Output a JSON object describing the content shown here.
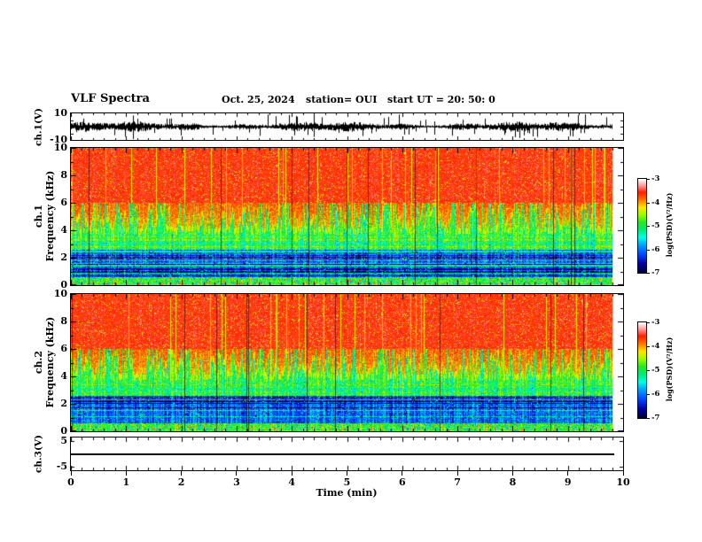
{
  "title": {
    "main": "VLF Spectra",
    "date": "Oct. 25, 2024",
    "station": "station= OUI",
    "start_ut": "start UT =  20: 50: 0"
  },
  "axes": {
    "time": {
      "label": "Time (min)",
      "ticks": [
        0,
        1,
        2,
        3,
        4,
        5,
        6,
        7,
        8,
        9,
        10
      ],
      "minor_step_min": 0.2,
      "range_min": [
        0,
        10
      ]
    },
    "ch1_wave": {
      "label": "ch.1(V)",
      "ticks": [
        10,
        -10
      ],
      "range_v": [
        -10,
        10
      ]
    },
    "ch1_spec": {
      "label_line1": "ch.1",
      "label_line2": "Frequency (kHz)",
      "ticks": [
        10,
        8,
        6,
        4,
        2,
        0
      ],
      "range_khz": [
        0,
        10
      ]
    },
    "ch2_spec": {
      "label_line1": "ch.2",
      "label_line2": "Frequency (kHz)",
      "ticks": [
        10,
        8,
        6,
        4,
        2,
        0
      ],
      "range_khz": [
        0,
        10
      ]
    },
    "ch3_wave": {
      "label": "ch.3(V)",
      "ticks": [
        5,
        -5
      ],
      "range_v": [
        -5,
        5
      ]
    }
  },
  "colorbar": {
    "label": "log(PSD)(V²/Hz)",
    "ticks": [
      -3,
      -4,
      -5,
      -6,
      -7
    ],
    "range": [
      -7,
      -3
    ],
    "colors_top_to_bottom": [
      "#ffffff",
      "#ff9696",
      "#ff1e00",
      "#ff7800",
      "#ffe600",
      "#96ff00",
      "#28e628",
      "#00ebc8",
      "#00a0ff",
      "#0046ff",
      "#0000a0",
      "#000030"
    ]
  },
  "chart_data": [
    {
      "type": "line",
      "panel": "ch1_waveform",
      "ylabel": "ch.1(V)",
      "xlabel": "Time (min)",
      "xlim": [
        0,
        10
      ],
      "ylim": [
        -10,
        10
      ],
      "data_end_min": 9.8,
      "description": "Dense broadband audio noise waveform: continuous black band of ~±2-4 V with frequent impulsive spikes reaching toward ±10 V, uniform across the full record."
    },
    {
      "type": "heatmap",
      "panel": "ch1_spectrogram",
      "ylabel": "ch.1 Frequency (kHz)",
      "xlabel": "Time (min)",
      "xlim": [
        0,
        10
      ],
      "ylim": [
        0,
        10
      ],
      "data_end_min": 9.8,
      "z": {
        "label": "log(PSD)(V²/Hz)",
        "lim": [
          -7,
          -3
        ]
      },
      "bands": [
        {
          "freq_khz": [
            6,
            10
          ],
          "level_logpsd": -3.6,
          "appearance": "saturated red with sparse yellow vertical streaks"
        },
        {
          "freq_khz": [
            4,
            6
          ],
          "level_logpsd": -4.2,
          "appearance": "jagged yellow/green flame tops of sferics reaching up into the red zone"
        },
        {
          "freq_khz": [
            2.5,
            4
          ],
          "level_logpsd": -5.0,
          "appearance": "green and cyan mottled noise"
        },
        {
          "freq_khz": [
            0.6,
            2.5
          ],
          "level_logpsd": -6.2,
          "appearance": "blue/navy floor with horizontal cyan banding lines"
        },
        {
          "freq_khz": [
            0,
            0.6
          ],
          "level_logpsd": -4.9,
          "appearance": "green strip with red/yellow speckle at very bottom"
        }
      ],
      "features": "occasional thin dark-red vertical lines spanning all frequencies"
    },
    {
      "type": "heatmap",
      "panel": "ch2_spectrogram",
      "ylabel": "ch.2 Frequency (kHz)",
      "xlabel": "Time (min)",
      "xlim": [
        0,
        10
      ],
      "ylim": [
        0,
        10
      ],
      "data_end_min": 9.8,
      "z": {
        "label": "log(PSD)(V²/Hz)",
        "lim": [
          -7,
          -3
        ]
      },
      "bands": [
        {
          "freq_khz": [
            6,
            10
          ],
          "level_logpsd": -3.6,
          "appearance": "saturated red with sparse yellow vertical streaks"
        },
        {
          "freq_khz": [
            4,
            6
          ],
          "level_logpsd": -4.2,
          "appearance": "jagged yellow/green flame tops of sferics reaching up into the red zone"
        },
        {
          "freq_khz": [
            2.5,
            4
          ],
          "level_logpsd": -5.0,
          "appearance": "green and cyan mottled noise"
        },
        {
          "freq_khz": [
            0.6,
            2.5
          ],
          "level_logpsd": -6.2,
          "appearance": "blue/navy floor with horizontal cyan banding lines"
        },
        {
          "freq_khz": [
            0,
            0.6
          ],
          "level_logpsd": -4.9,
          "appearance": "green strip with red/yellow speckle at very bottom"
        }
      ],
      "features": "occasional thin dark-red vertical lines spanning all frequencies"
    },
    {
      "type": "line",
      "panel": "ch3_waveform",
      "ylabel": "ch.3(V)",
      "xlabel": "Time (min)",
      "xlim": [
        0,
        10
      ],
      "ylim": [
        -5,
        5
      ],
      "data_end_min": 9.8,
      "values": "constant 0 V (flat line)"
    }
  ]
}
